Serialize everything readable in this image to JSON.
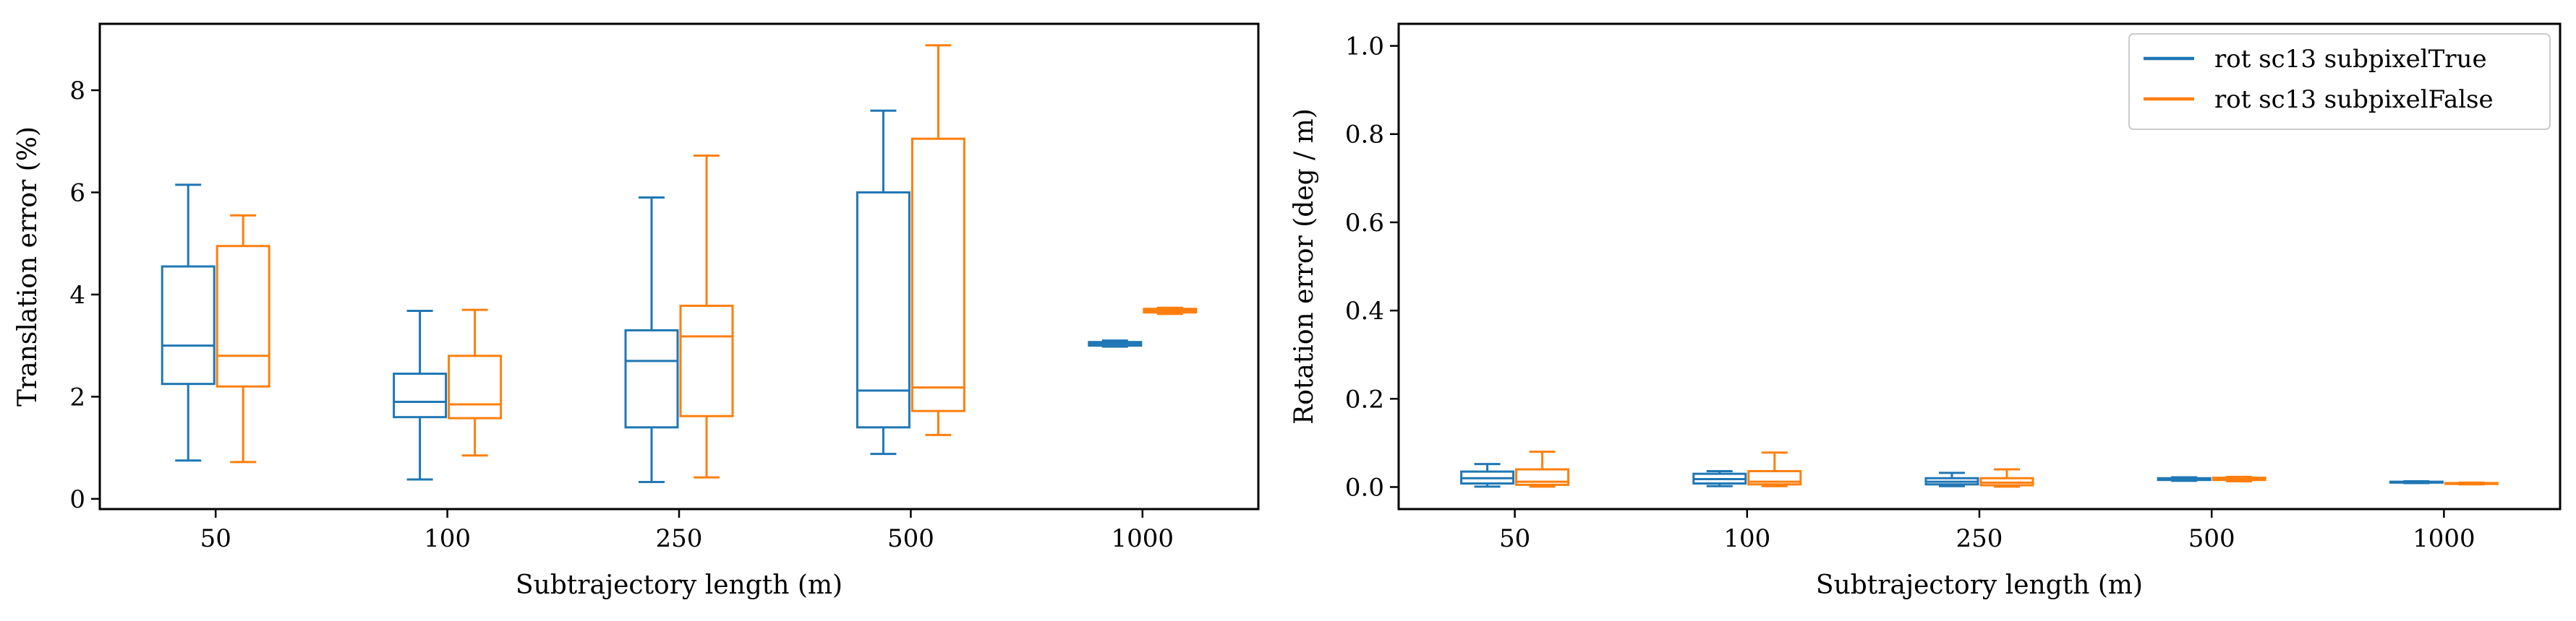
{
  "colors": {
    "series_true": "#1f77b4",
    "series_false": "#ff7f0e",
    "axes": "#000000",
    "legend_border": "#cccccc"
  },
  "chart_data": [
    {
      "type": "box",
      "xlabel": "Subtrajectory length (m)",
      "ylabel": "Translation error (%)",
      "categories": [
        "50",
        "100",
        "250",
        "500",
        "1000"
      ],
      "ylim": [
        -0.2,
        9.3
      ],
      "yticks": [
        0,
        2,
        4,
        6,
        8
      ],
      "grid": false,
      "legend": null,
      "series": [
        {
          "color_key": "series_true",
          "boxes": [
            {
              "whislo": 0.75,
              "q1": 2.25,
              "med": 3.0,
              "q3": 4.55,
              "whishi": 6.15
            },
            {
              "whislo": 0.38,
              "q1": 1.6,
              "med": 1.9,
              "q3": 2.45,
              "whishi": 3.68
            },
            {
              "whislo": 0.33,
              "q1": 1.4,
              "med": 2.7,
              "q3": 3.3,
              "whishi": 5.9
            },
            {
              "whislo": 0.88,
              "q1": 1.4,
              "med": 2.12,
              "q3": 6.0,
              "whishi": 7.6
            },
            {
              "whislo": 2.98,
              "q1": 3.0,
              "med": 3.04,
              "q3": 3.07,
              "whishi": 3.1
            }
          ]
        },
        {
          "color_key": "series_false",
          "boxes": [
            {
              "whislo": 0.72,
              "q1": 2.2,
              "med": 2.8,
              "q3": 4.95,
              "whishi": 5.55
            },
            {
              "whislo": 0.85,
              "q1": 1.58,
              "med": 1.85,
              "q3": 2.8,
              "whishi": 3.7
            },
            {
              "whislo": 0.42,
              "q1": 1.62,
              "med": 3.18,
              "q3": 3.78,
              "whishi": 6.72
            },
            {
              "whislo": 1.25,
              "q1": 1.72,
              "med": 2.18,
              "q3": 7.05,
              "whishi": 8.88
            },
            {
              "whislo": 3.62,
              "q1": 3.65,
              "med": 3.68,
              "q3": 3.72,
              "whishi": 3.74
            }
          ]
        }
      ]
    },
    {
      "type": "box",
      "xlabel": "Subtrajectory length (m)",
      "ylabel": "Rotation error (deg / m)",
      "categories": [
        "50",
        "100",
        "250",
        "500",
        "1000"
      ],
      "ylim": [
        -0.05,
        1.05
      ],
      "yticks": [
        0.0,
        0.2,
        0.4,
        0.6,
        0.8,
        1.0
      ],
      "grid": false,
      "legend": "top-right",
      "series": [
        {
          "name": "rot sc13 subpixelTrue",
          "color_key": "series_true",
          "boxes": [
            {
              "whislo": 0.001,
              "q1": 0.008,
              "med": 0.02,
              "q3": 0.035,
              "whishi": 0.052
            },
            {
              "whislo": 0.002,
              "q1": 0.008,
              "med": 0.018,
              "q3": 0.03,
              "whishi": 0.036
            },
            {
              "whislo": 0.002,
              "q1": 0.006,
              "med": 0.012,
              "q3": 0.02,
              "whishi": 0.032
            },
            {
              "whislo": 0.014,
              "q1": 0.016,
              "med": 0.018,
              "q3": 0.02,
              "whishi": 0.022
            },
            {
              "whislo": 0.009,
              "q1": 0.01,
              "med": 0.011,
              "q3": 0.012,
              "whishi": 0.013
            }
          ]
        },
        {
          "name": "rot sc13 subpixelFalse",
          "color_key": "series_false",
          "boxes": [
            {
              "whislo": 0.001,
              "q1": 0.005,
              "med": 0.012,
              "q3": 0.04,
              "whishi": 0.08
            },
            {
              "whislo": 0.002,
              "q1": 0.006,
              "med": 0.012,
              "q3": 0.036,
              "whishi": 0.078
            },
            {
              "whislo": 0.001,
              "q1": 0.004,
              "med": 0.01,
              "q3": 0.02,
              "whishi": 0.04
            },
            {
              "whislo": 0.013,
              "q1": 0.016,
              "med": 0.019,
              "q3": 0.021,
              "whishi": 0.023
            },
            {
              "whislo": 0.006,
              "q1": 0.007,
              "med": 0.008,
              "q3": 0.009,
              "whishi": 0.01
            }
          ]
        }
      ]
    }
  ]
}
